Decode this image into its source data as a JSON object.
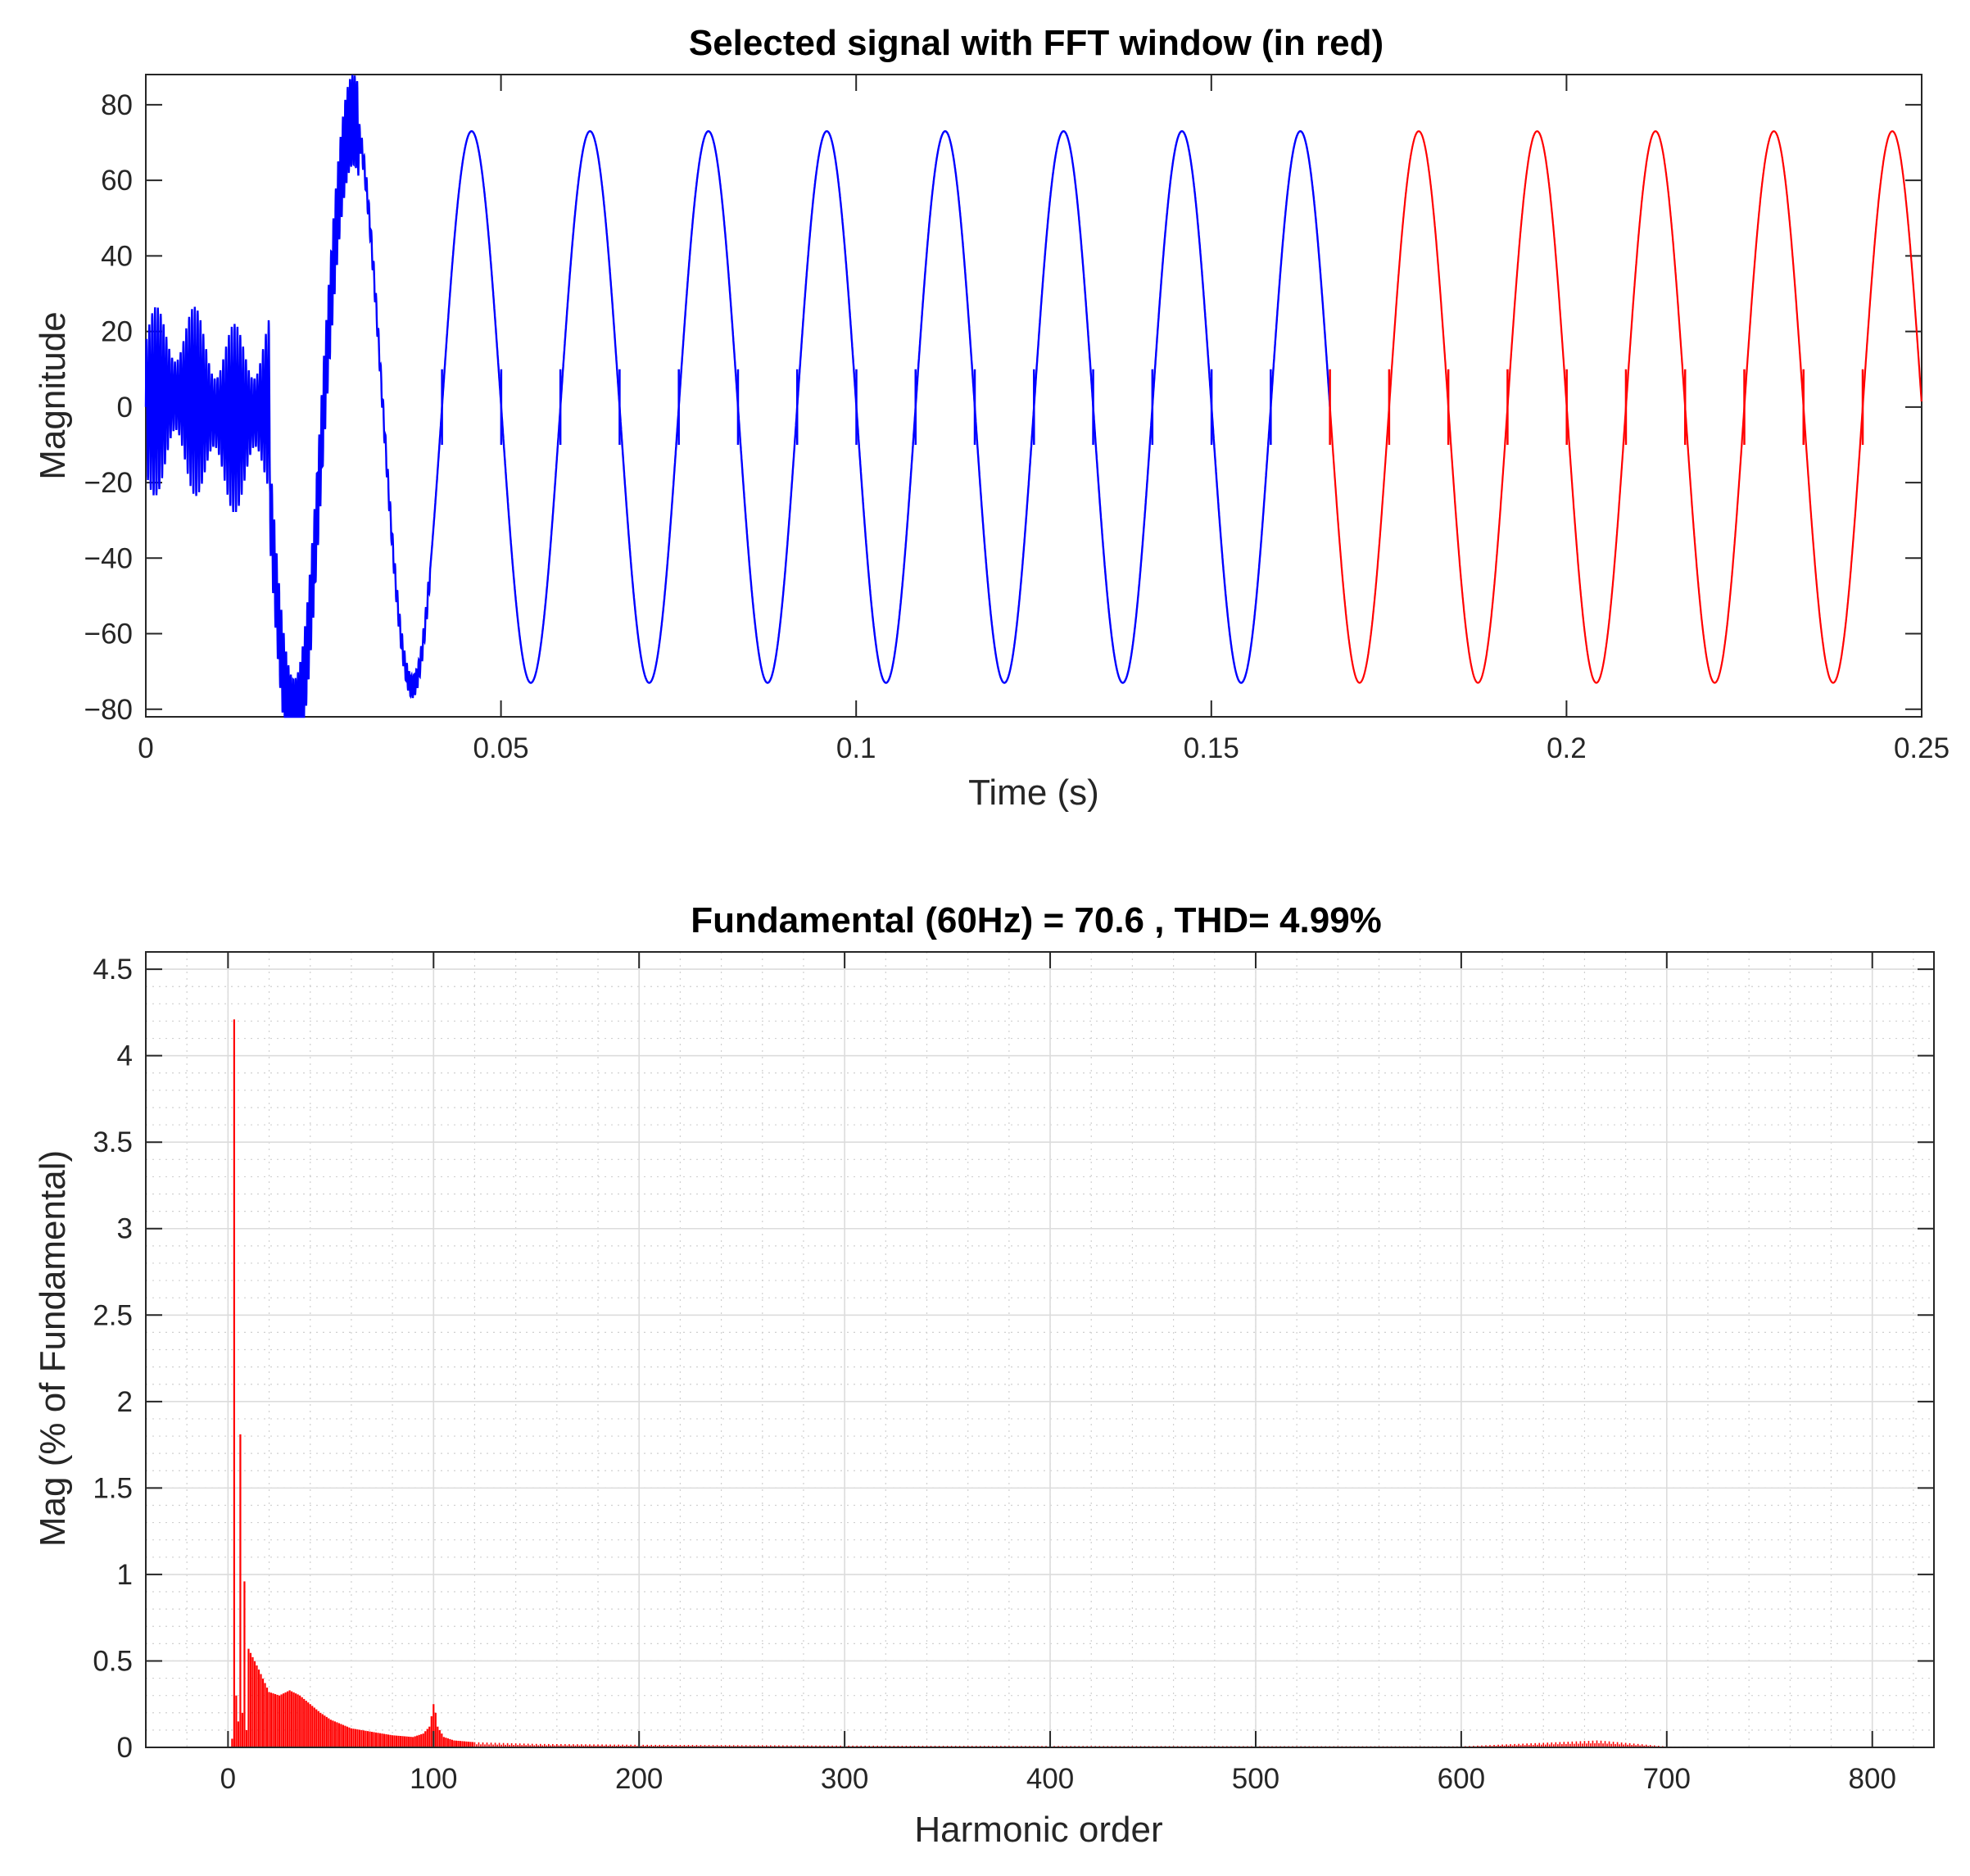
{
  "chart_data": [
    {
      "type": "line",
      "title": "Selected signal with FFT window (in red)",
      "xlabel": "Time (s)",
      "ylabel": "Magnitude",
      "xlim": [
        0,
        0.25
      ],
      "ylim": [
        -82,
        88
      ],
      "xticks": [
        0,
        0.05,
        0.1,
        0.15,
        0.2,
        0.25
      ],
      "xtick_labels": [
        "0",
        "0.05",
        "0.1",
        "0.15",
        "0.2",
        "0.25"
      ],
      "yticks": [
        80,
        60,
        40,
        20,
        0,
        -20,
        -40,
        -60,
        -80
      ],
      "ytick_labels": [
        "80",
        "60",
        "40",
        "20",
        "0",
        "−20",
        "−40",
        "−60",
        "−80"
      ],
      "grid": false,
      "fundamental_hz": 60,
      "steady_amplitude": 73,
      "fft_window_start": 0.1667,
      "series": [
        {
          "color": "#0000ff",
          "x": [
            0,
            0.005,
            0.01,
            0.015,
            0.0175,
            0.021,
            0.029,
            0.0375,
            0.0458,
            0.0542,
            0.0625,
            0.0708,
            0.0792,
            0.0875,
            0.0958,
            0.1042,
            0.1125,
            0.1208,
            0.1292,
            0.1375,
            0.1458,
            0.1542,
            0.1625,
            0.1667
          ],
          "y": [
            0,
            25,
            15,
            22,
            20,
            88,
            -82,
            75,
            -73,
            73,
            -73,
            73,
            -73,
            73,
            -73,
            73,
            -73,
            73,
            -73,
            73,
            -73,
            73,
            -73,
            0
          ]
        },
        {
          "color": "#ff0000",
          "x": [
            0.1667,
            0.1708,
            0.1792,
            0.1875,
            0.1958,
            0.2042,
            0.2125,
            0.2208,
            0.2292,
            0.2375,
            0.2458,
            0.25
          ],
          "y": [
            0,
            73,
            -73,
            73,
            -73,
            73,
            -73,
            73,
            -73,
            73,
            -73,
            0
          ]
        }
      ]
    },
    {
      "type": "bar",
      "title": "Fundamental (60Hz) = 70.6 , THD= 4.99%",
      "xlabel": "Harmonic order",
      "ylabel": "Mag (% of Fundamental)",
      "xlim": [
        -40,
        830
      ],
      "ylim": [
        0,
        4.6
      ],
      "xticks": [
        0,
        100,
        200,
        300,
        400,
        500,
        600,
        700,
        800
      ],
      "xtick_labels": [
        "0",
        "100",
        "200",
        "300",
        "400",
        "500",
        "600",
        "700",
        "800"
      ],
      "yticks": [
        4.5,
        4,
        3.5,
        3,
        2.5,
        2,
        1.5,
        1,
        0.5,
        0
      ],
      "ytick_labels": [
        "4.5",
        "4",
        "3.5",
        "3",
        "2.5",
        "2",
        "1.5",
        "1",
        "0.5",
        "0"
      ],
      "grid": true,
      "minor_grid": true,
      "color": "#ff0000",
      "harmonics": [
        2,
        3,
        4,
        5,
        6,
        7,
        8,
        10,
        15,
        20,
        25,
        30,
        35,
        40,
        45,
        50,
        60,
        70,
        80,
        90,
        95,
        98,
        99,
        100,
        101,
        102,
        105,
        110,
        120,
        150,
        200,
        300,
        400,
        500,
        600,
        666,
        667,
        700,
        800
      ],
      "values": [
        0.05,
        4.21,
        0.3,
        0.15,
        1.81,
        0.2,
        0.96,
        0.57,
        0.45,
        0.32,
        0.3,
        0.33,
        0.3,
        0.25,
        0.2,
        0.16,
        0.11,
        0.09,
        0.07,
        0.06,
        0.08,
        0.12,
        0.18,
        0.25,
        0.2,
        0.12,
        0.06,
        0.04,
        0.03,
        0.02,
        0.015,
        0.01,
        0.008,
        0.007,
        0.006,
        0.04,
        0.04,
        0.005,
        0.004
      ]
    }
  ]
}
